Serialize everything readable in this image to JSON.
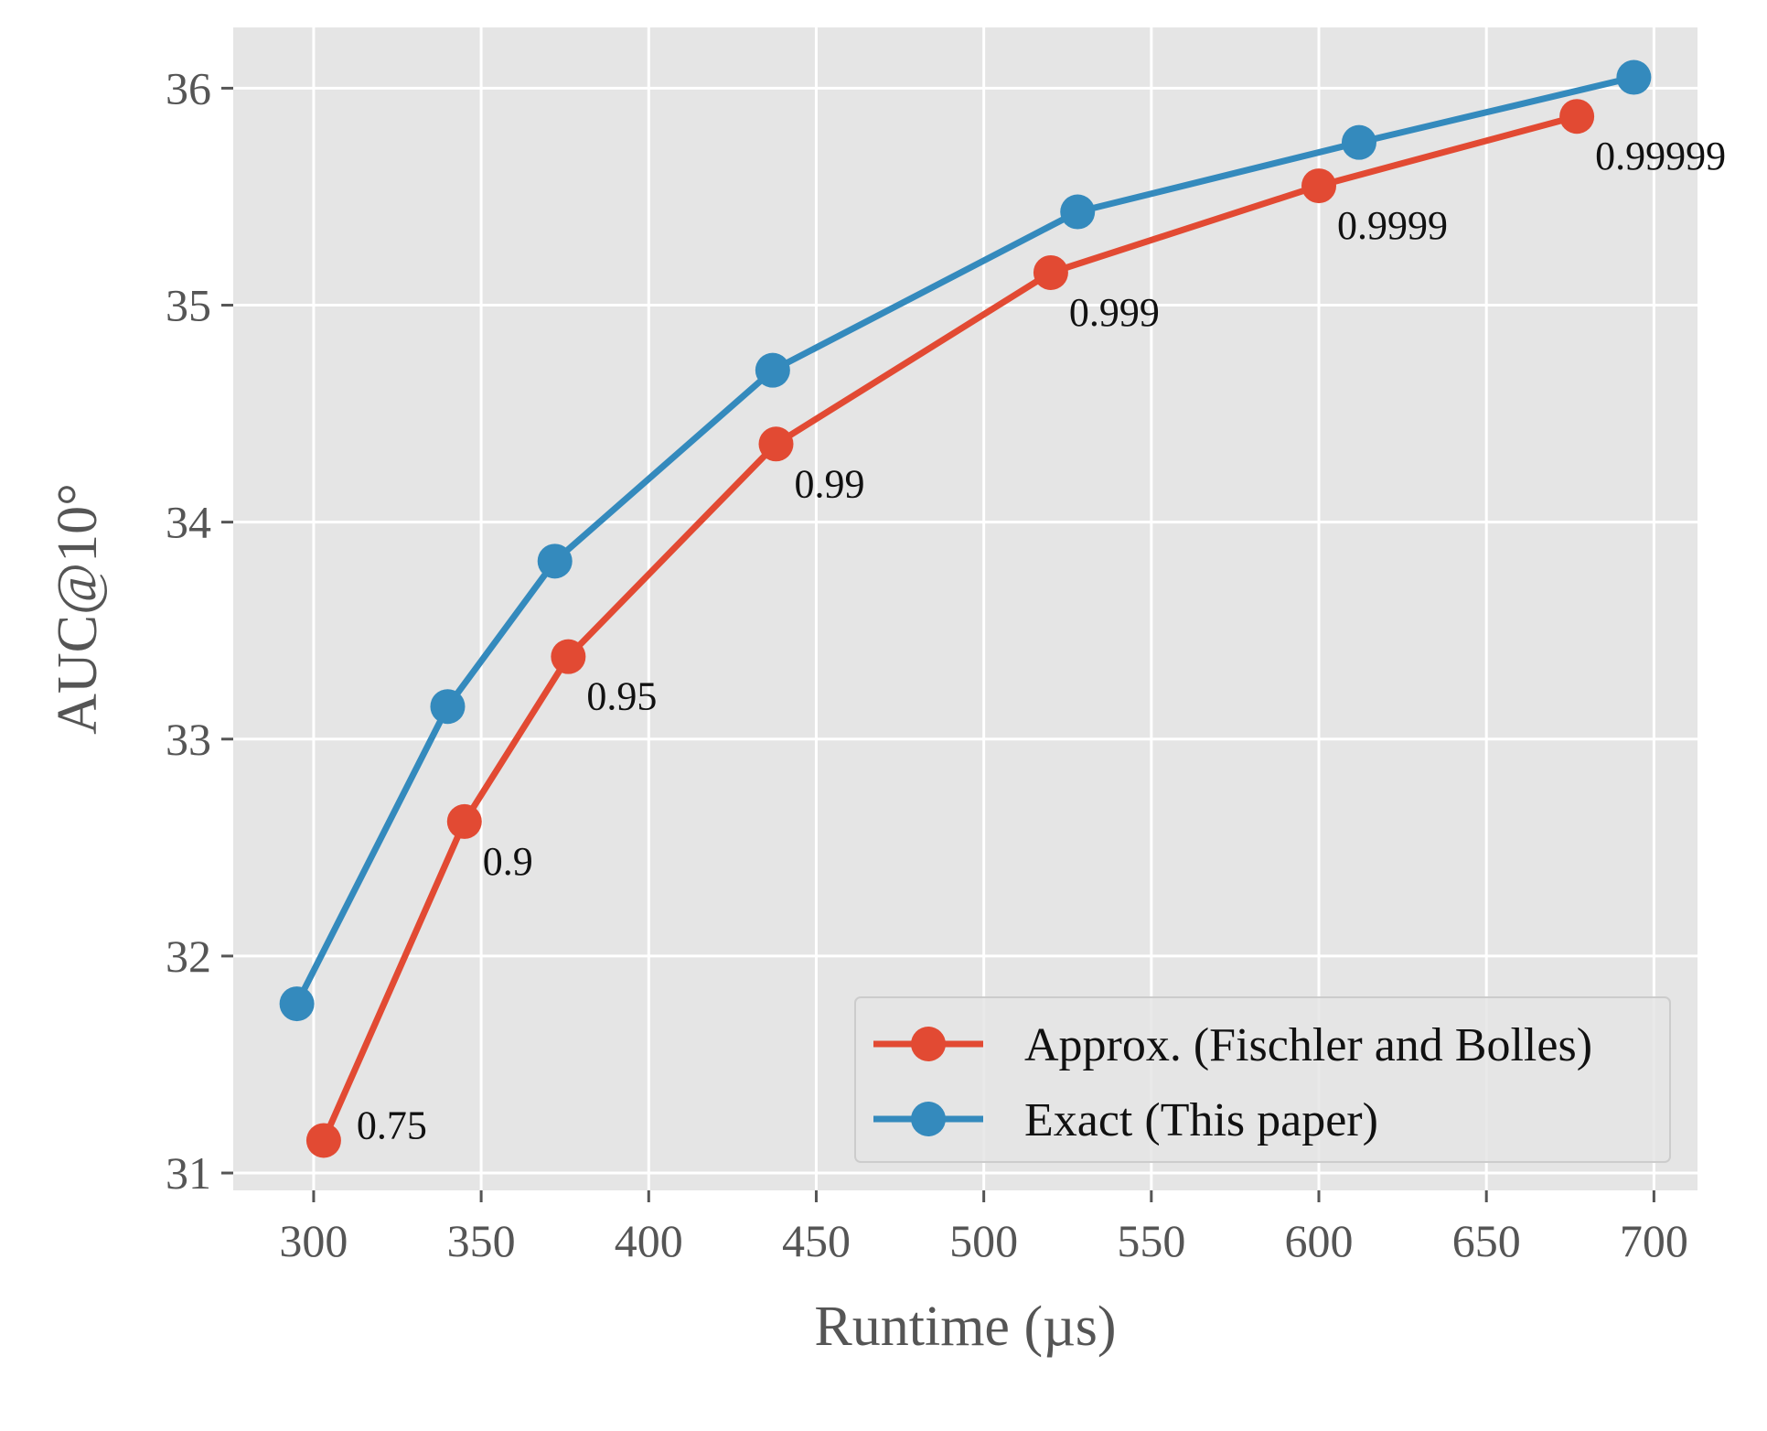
{
  "chart_data": {
    "type": "line",
    "title": "",
    "xlabel": "Runtime (µs)",
    "ylabel": "AUC@10°",
    "xlim": [
      276,
      713
    ],
    "ylim": [
      30.92,
      36.28
    ],
    "xticks": [
      300,
      350,
      400,
      450,
      500,
      550,
      600,
      650,
      700
    ],
    "yticks": [
      31,
      32,
      33,
      34,
      35,
      36
    ],
    "grid": true,
    "legend_position": "lower-right",
    "series": [
      {
        "name": "Approx. (Fischler and Bolles)",
        "color": "#e24a33",
        "x": [
          303,
          345,
          376,
          438,
          520,
          600,
          677
        ],
        "y": [
          31.15,
          32.62,
          33.38,
          34.36,
          35.15,
          35.55,
          35.87
        ],
        "point_labels": [
          "0.75",
          "0.9",
          "0.95",
          "0.99",
          "0.999",
          "0.9999",
          "0.99999"
        ]
      },
      {
        "name": "Exact (This paper)",
        "color": "#348abd",
        "x": [
          295,
          340,
          372,
          437,
          528,
          612,
          694
        ],
        "y": [
          31.78,
          33.15,
          33.82,
          34.7,
          35.43,
          35.75,
          36.05
        ]
      }
    ],
    "colors": {
      "plot_background": "#e5e5e5",
      "grid": "#ffffff"
    }
  }
}
